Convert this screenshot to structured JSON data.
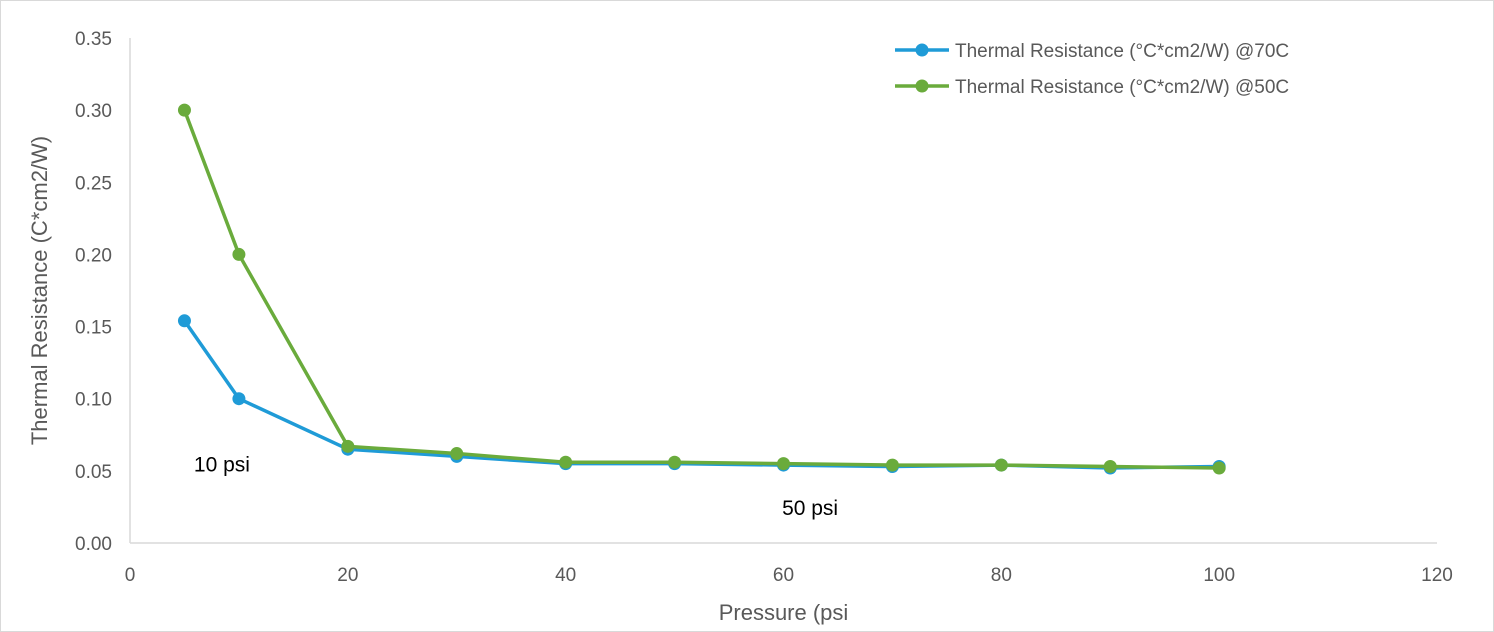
{
  "chart_data": {
    "type": "line",
    "xlabel": "Pressure (psi",
    "ylabel": "Thermal Resistance (C*cm2/W)",
    "xlim": [
      0,
      120
    ],
    "ylim": [
      0,
      0.35
    ],
    "x_ticks": [
      "0",
      "20",
      "40",
      "60",
      "80",
      "100",
      "120"
    ],
    "y_ticks": [
      "0.00",
      "0.05",
      "0.10",
      "0.15",
      "0.20",
      "0.25",
      "0.30",
      "0.35"
    ],
    "grid": false,
    "legend_position": "top-right",
    "series": [
      {
        "name": "Thermal Resistance (°C*cm2/W) @70C",
        "color": "#1f9bd7",
        "x": [
          5,
          10,
          20,
          30,
          40,
          50,
          60,
          70,
          80,
          90,
          100
        ],
        "y": [
          0.154,
          0.1,
          0.065,
          0.06,
          0.055,
          0.055,
          0.054,
          0.053,
          0.054,
          0.052,
          0.053
        ]
      },
      {
        "name": "Thermal Resistance (°C*cm2/W) @50C",
        "color": "#6aab3c",
        "x": [
          5,
          10,
          20,
          30,
          40,
          50,
          60,
          70,
          80,
          90,
          100
        ],
        "y": [
          0.3,
          0.2,
          0.067,
          0.062,
          0.056,
          0.056,
          0.055,
          0.054,
          0.054,
          0.053,
          0.052
        ]
      }
    ],
    "annotations": [
      {
        "text": "10 psi",
        "x": 10,
        "y": 0.055
      },
      {
        "text": "50 psi",
        "x": 64,
        "y": 0.025
      }
    ]
  }
}
